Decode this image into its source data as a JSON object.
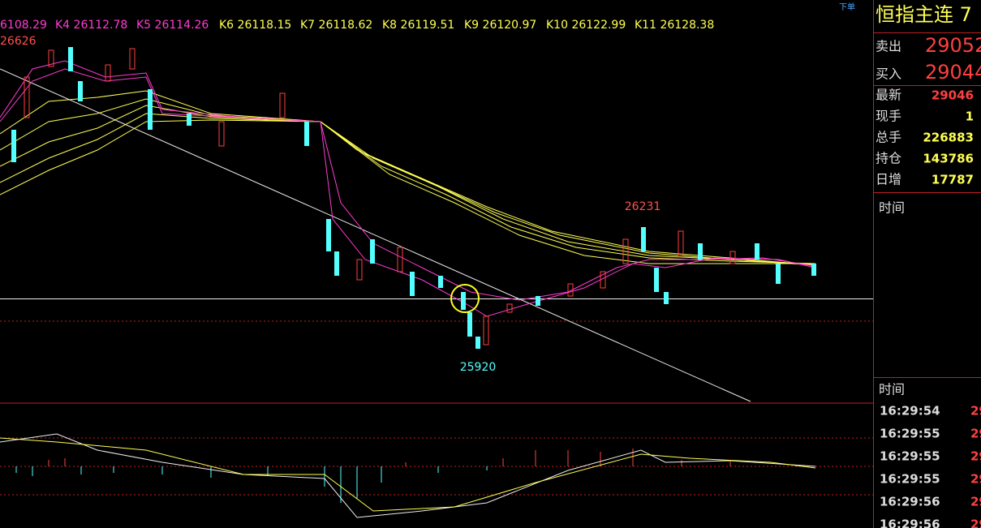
{
  "ma_legend": [
    {
      "label": "6108.29",
      "color": "#ff3cd2"
    },
    {
      "label": "K4 26112.78",
      "color": "#ff3cd2"
    },
    {
      "label": "K5 26114.26",
      "color": "#ff3cd2"
    },
    {
      "label": "K6 26118.15",
      "color": "#ffff54"
    },
    {
      "label": "K7 26118.62",
      "color": "#ffff54"
    },
    {
      "label": "K8 26119.51",
      "color": "#ffff54"
    },
    {
      "label": "K9 26120.97",
      "color": "#ffff54"
    },
    {
      "label": "K10 26122.99",
      "color": "#ffff54"
    },
    {
      "label": "K11 26128.38",
      "color": "#ffff54"
    }
  ],
  "annotations": {
    "left_high": "26626",
    "high": "26231",
    "low": "25920"
  },
  "order_button": "下单",
  "panel": {
    "title": "恒指主连 7",
    "sell_label": "卖出",
    "sell": "29052",
    "buy_label": "买入",
    "buy": "29044",
    "rows": [
      [
        "最新",
        "29046"
      ],
      [
        "现手",
        "1"
      ],
      [
        "总手",
        "226883"
      ],
      [
        "持仓",
        "143786"
      ],
      [
        "日增",
        "17787"
      ]
    ],
    "time_header_1": "时间",
    "time_header_2": "时间",
    "ticks": [
      [
        "16:29:54",
        "29"
      ],
      [
        "16:29:55",
        "29"
      ],
      [
        "16:29:55",
        "29"
      ],
      [
        "16:29:55",
        "29"
      ],
      [
        "16:29:56",
        "29"
      ],
      [
        "16:29:56",
        "29"
      ]
    ]
  }
}
